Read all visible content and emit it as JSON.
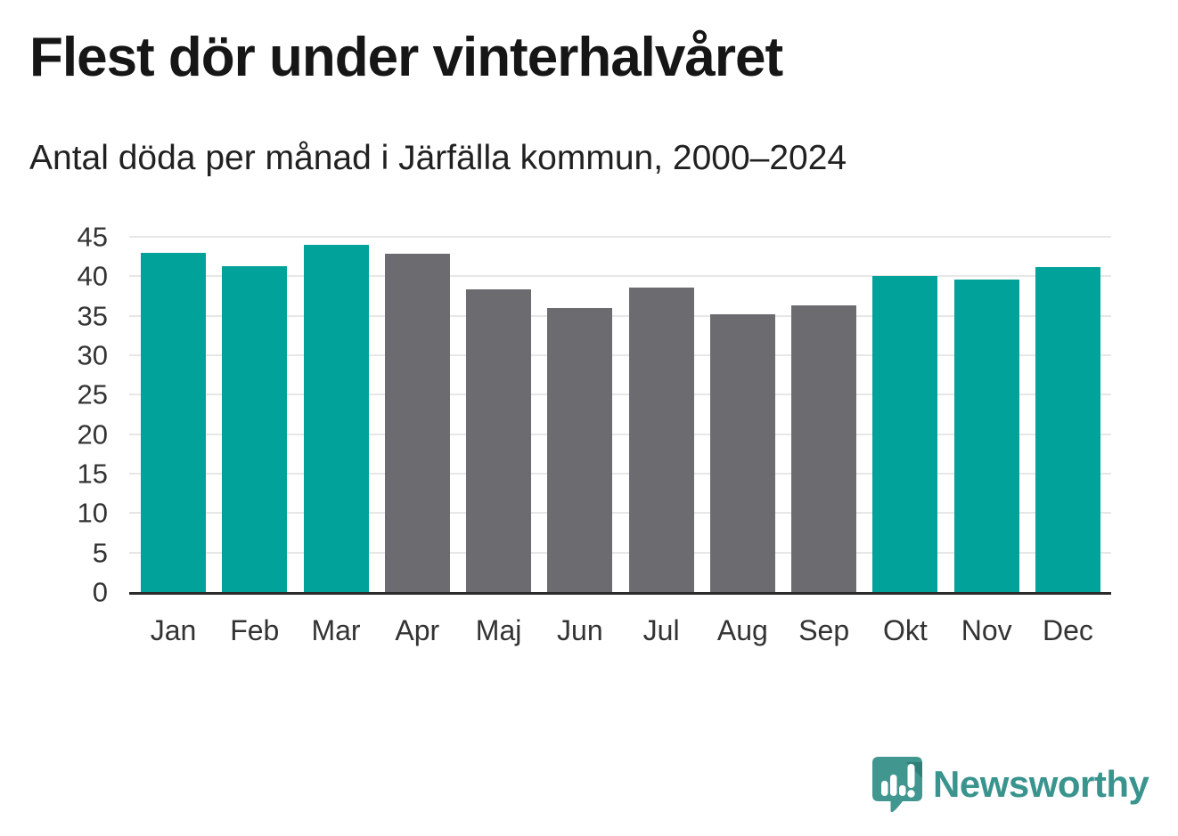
{
  "header": {
    "title": "Flest dör under vinterhalvåret",
    "subtitle": "Antal döda per månad i Järfälla kommun, 2000–2024"
  },
  "chart_data": {
    "type": "bar",
    "title": "Flest dör under vinterhalvåret",
    "subtitle": "Antal döda per månad i Järfälla kommun, 2000–2024",
    "categories": [
      "Jan",
      "Feb",
      "Mar",
      "Apr",
      "Maj",
      "Jun",
      "Jul",
      "Aug",
      "Sep",
      "Okt",
      "Nov",
      "Dec"
    ],
    "values": [
      43.0,
      41.3,
      44.0,
      42.9,
      38.3,
      36.0,
      38.6,
      35.2,
      36.3,
      40.0,
      39.6,
      41.2
    ],
    "bar_colors": [
      "teal",
      "teal",
      "teal",
      "gray",
      "gray",
      "gray",
      "gray",
      "gray",
      "gray",
      "teal",
      "teal",
      "teal"
    ],
    "colors": {
      "teal": "#00a299",
      "gray": "#6c6c70"
    },
    "xlabel": "",
    "ylabel": "",
    "ylim": [
      0,
      45
    ],
    "y_ticks": [
      0,
      5,
      10,
      15,
      20,
      25,
      30,
      35,
      40,
      45
    ],
    "grid": "horizontal",
    "legend": "none",
    "gridline_color": "#e7e7e7",
    "axis_line_color": "#2b2b2b"
  },
  "footer": {
    "brand": "Newsworthy",
    "logo_icon": "newsworthy-bubble-chart-icon",
    "brand_color": "#3a948e",
    "logo_fill": "#41968f",
    "logo_fold": "#2f7f79"
  }
}
